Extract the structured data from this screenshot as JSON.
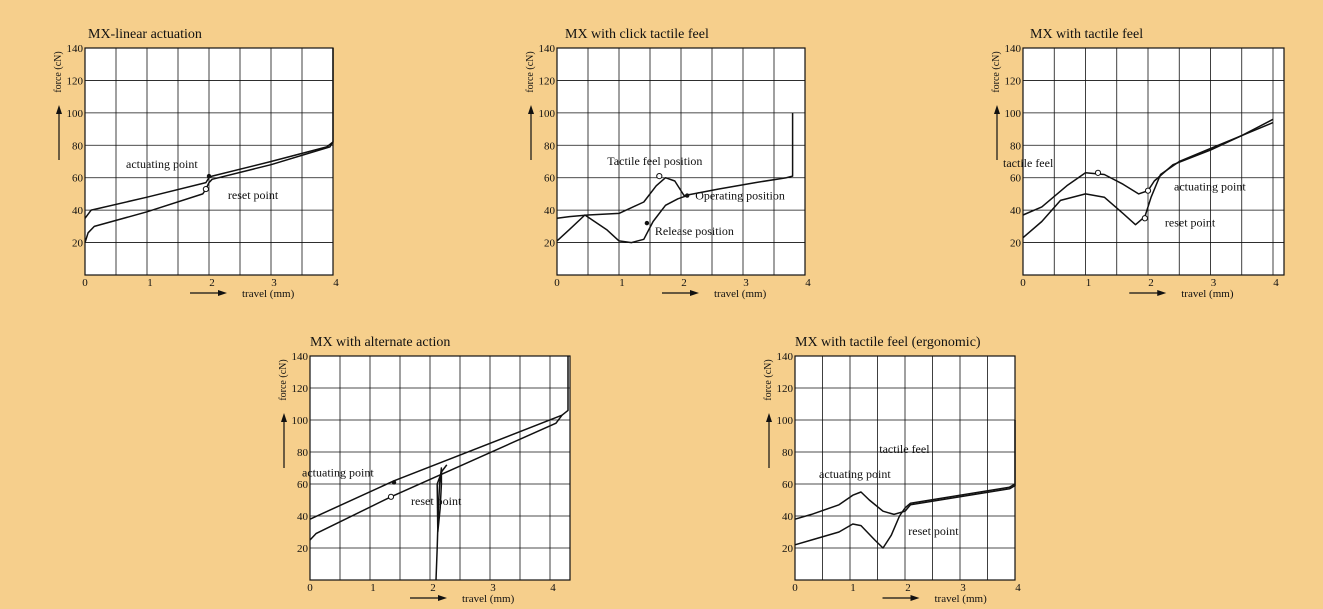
{
  "page": {
    "background": "#f6cf8c",
    "plot_background": "#ffffff",
    "line_color": "#111111"
  },
  "chart_data": [
    {
      "type": "line",
      "title": "MX-linear actuation",
      "xlabel": "travel (mm)",
      "ylabel": "force (cN)",
      "xlim": [
        0,
        4
      ],
      "ylim": [
        0,
        140
      ],
      "xticks": [
        "0",
        "1",
        "2",
        "3",
        "4"
      ],
      "yticks": [
        "20",
        "40",
        "60",
        "80",
        "100",
        "120",
        "140"
      ],
      "grid": true,
      "series": [
        {
          "x": [
            0,
            0.1,
            1,
            1.95,
            2,
            2.05,
            3,
            3.9,
            4,
            4
          ],
          "y": [
            35,
            40,
            48,
            57,
            60,
            61,
            70,
            79,
            82,
            140
          ]
        },
        {
          "x": [
            0,
            0.05,
            0.15,
            1,
            1.9,
            1.95,
            2,
            2.05,
            3,
            3.95,
            4
          ],
          "y": [
            20,
            26,
            30,
            39,
            50,
            53,
            57,
            59,
            68,
            79,
            82
          ]
        }
      ],
      "annotations": [
        {
          "text": "actuating point",
          "x": 2.0,
          "y": 61
        },
        {
          "text": "reset point",
          "x": 1.95,
          "y": 53
        }
      ]
    },
    {
      "type": "line",
      "title": "MX with click tactile feel",
      "xlabel": "travel (mm)",
      "ylabel": "force (cN)",
      "xlim": [
        0,
        4
      ],
      "ylim": [
        0,
        140
      ],
      "xticks": [
        "0",
        "1",
        "2",
        "3",
        "4"
      ],
      "yticks": [
        "20",
        "40",
        "60",
        "80",
        "100",
        "120",
        "140"
      ],
      "grid": true,
      "series": [
        {
          "x": [
            0,
            0.2,
            0.5,
            1.0,
            1.4,
            1.6,
            1.75,
            1.9,
            2.05,
            2.2,
            2.6,
            3.2,
            3.7,
            3.8,
            3.8
          ],
          "y": [
            35,
            36,
            37,
            38,
            45,
            55,
            60,
            58,
            49,
            50,
            53,
            57,
            60,
            61,
            100
          ]
        },
        {
          "x": [
            0,
            0.2,
            0.45,
            0.8,
            1.0,
            1.2,
            1.4,
            1.55,
            1.75,
            1.95,
            2.1
          ],
          "y": [
            21,
            28,
            37,
            28,
            21,
            20,
            22,
            33,
            43,
            47,
            49
          ]
        }
      ],
      "annotations": [
        {
          "text": "Tactile feel position",
          "x": 1.65,
          "y": 61
        },
        {
          "text": "Operating position",
          "x": 2.1,
          "y": 49
        },
        {
          "text": "Release position",
          "x": 1.45,
          "y": 32
        }
      ]
    },
    {
      "type": "line",
      "title": "MX with tactile feel",
      "xlabel": "travel (mm)",
      "ylabel": "force (cN)",
      "xlim": [
        0,
        4
      ],
      "ylim": [
        0,
        140
      ],
      "xticks": [
        "0",
        "1",
        "2",
        "3",
        "4"
      ],
      "yticks": [
        "20",
        "40",
        "60",
        "80",
        "100",
        "120",
        "140"
      ],
      "grid": true,
      "series": [
        {
          "x": [
            0,
            0.3,
            0.7,
            1.0,
            1.3,
            1.6,
            1.85,
            2.0,
            2.1,
            2.4,
            3.0,
            3.5,
            4.0
          ],
          "y": [
            37,
            42,
            55,
            63,
            62,
            56,
            50,
            52,
            58,
            68,
            77,
            86,
            96
          ]
        },
        {
          "x": [
            0,
            0.3,
            0.6,
            1.0,
            1.3,
            1.6,
            1.8,
            1.95,
            2.05,
            2.2,
            2.5,
            3.0,
            3.5,
            4.0
          ],
          "y": [
            23,
            33,
            46,
            50,
            48,
            38,
            31,
            36,
            48,
            62,
            70,
            78,
            86,
            94
          ]
        }
      ],
      "annotations": [
        {
          "text": "tactile feel",
          "x": 1.2,
          "y": 63
        },
        {
          "text": "actuating point",
          "x": 2.0,
          "y": 52
        },
        {
          "text": "reset point",
          "x": 1.95,
          "y": 35
        }
      ]
    },
    {
      "type": "line",
      "title": "MX with alternate action",
      "xlabel": "travel (mm)",
      "ylabel": "force (cN)",
      "xlim": [
        0,
        4.3
      ],
      "ylim": [
        0,
        140
      ],
      "xticks": [
        "0",
        "1",
        "2",
        "3",
        "4"
      ],
      "yticks": [
        "20",
        "40",
        "60",
        "80",
        "100",
        "120",
        "140"
      ],
      "grid": true,
      "series": [
        {
          "x": [
            0,
            1.4,
            4.2,
            4.3,
            4.3
          ],
          "y": [
            38,
            62,
            103,
            106,
            140
          ]
        },
        {
          "x": [
            0,
            0.1,
            1.35,
            4.1,
            4.2
          ],
          "y": [
            25,
            29,
            52,
            98,
            103
          ]
        },
        {
          "x": [
            2.1,
            2.12,
            2.14,
            2.16,
            2.19,
            2.19,
            2.17,
            2.13,
            2.12,
            2.2,
            2.24,
            2.28
          ],
          "y": [
            0,
            20,
            45,
            60,
            70,
            60,
            45,
            30,
            60,
            68,
            70,
            72
          ]
        }
      ],
      "annotations": [
        {
          "text": "actuating point",
          "x": 1.4,
          "y": 61
        },
        {
          "text": "reset point",
          "x": 1.35,
          "y": 52
        }
      ]
    },
    {
      "type": "line",
      "title": "MX with tactile feel (ergonomic)",
      "xlabel": "travel (mm)",
      "ylabel": "force (cN)",
      "xlim": [
        0,
        4
      ],
      "ylim": [
        0,
        140
      ],
      "xticks": [
        "0",
        "1",
        "2",
        "3",
        "4"
      ],
      "yticks": [
        "20",
        "40",
        "60",
        "80",
        "100",
        "120",
        "140"
      ],
      "grid": true,
      "series": [
        {
          "x": [
            0,
            0.3,
            0.8,
            1.05,
            1.2,
            1.35,
            1.6,
            1.8,
            2.0,
            2.1,
            3.0,
            3.9,
            4.0,
            4.0
          ],
          "y": [
            38,
            41,
            47,
            53,
            55,
            50,
            43,
            41,
            43,
            47,
            52,
            57,
            59,
            100
          ]
        },
        {
          "x": [
            0,
            0.3,
            0.8,
            1.05,
            1.2,
            1.45,
            1.6,
            1.75,
            1.9,
            2.0,
            2.1,
            3.0,
            3.9,
            4.0
          ],
          "y": [
            22,
            25,
            30,
            35,
            34,
            25,
            20,
            28,
            40,
            45,
            48,
            53,
            58,
            60
          ]
        }
      ],
      "annotations": [
        {
          "text": "actuating point",
          "x": 1.2,
          "y": 55
        },
        {
          "text": "tactile feel",
          "x": 1.75,
          "y": 42
        },
        {
          "text": "reset point",
          "x": 1.95,
          "y": 42
        }
      ]
    }
  ]
}
